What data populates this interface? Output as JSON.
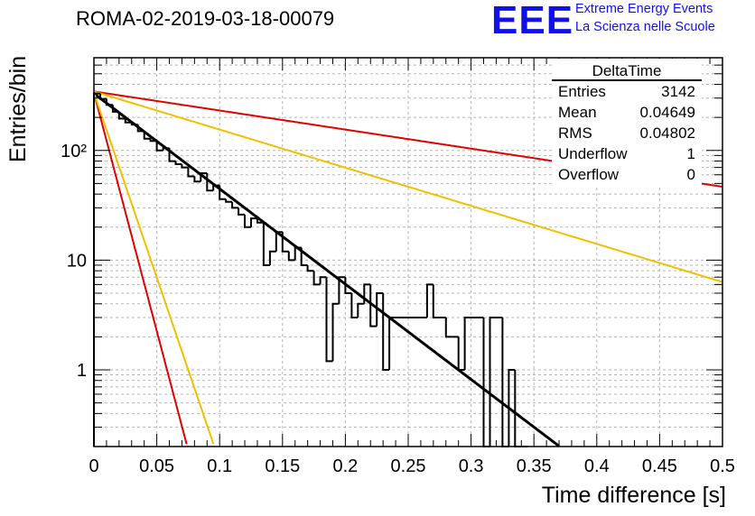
{
  "header": {
    "run_title": "ROMA-02-2019-03-18-00079",
    "logo_text": "EEE",
    "logo_line1": "Extreme Energy Events",
    "logo_line2": "La Scienza nelle Scuole",
    "logo_color": "#1010e8"
  },
  "stats_box": {
    "title": "DeltaTime",
    "rows": [
      {
        "key": "Entries",
        "value": "3142"
      },
      {
        "key": "Mean",
        "value": "0.04649"
      },
      {
        "key": "RMS",
        "value": "0.04802"
      },
      {
        "key": "Underflow",
        "value": "1"
      },
      {
        "key": "Overflow",
        "value": "0"
      }
    ]
  },
  "chart_data": {
    "type": "histogram",
    "title": "ROMA-02-2019-03-18-00079",
    "xlabel": "Time difference [s]",
    "ylabel": "Entries/bin",
    "xlim": [
      0,
      0.5
    ],
    "ylim": [
      0.2,
      700
    ],
    "yscale": "log",
    "grid": true,
    "x_ticks": [
      "0",
      "0.05",
      "0.1",
      "0.15",
      "0.2",
      "0.25",
      "0.3",
      "0.35",
      "0.4",
      "0.45",
      "0.5"
    ],
    "y_ticks": [
      "1",
      "10",
      "10²"
    ],
    "bin_width": 0.005,
    "counts": [
      330,
      295,
      260,
      225,
      195,
      180,
      172,
      150,
      128,
      122,
      100,
      105,
      80,
      75,
      70,
      58,
      52,
      62,
      43,
      48,
      36,
      34,
      30,
      26,
      20,
      24,
      22,
      9,
      12,
      18,
      12,
      10,
      13,
      9,
      8,
      6,
      7,
      1.2,
      4,
      7,
      5,
      3,
      4,
      6,
      2.5,
      5,
      1,
      3,
      3,
      3,
      3,
      3,
      3,
      6,
      3,
      3,
      2,
      2,
      1,
      3,
      3,
      3,
      0,
      3,
      3,
      0,
      1,
      0,
      0
    ],
    "fits": [
      {
        "name": "fit",
        "color": "#000000",
        "A": 330,
        "tau": 0.05
      },
      {
        "name": "red-steep",
        "color": "#e00000",
        "A": 335,
        "tau": 0.01
      },
      {
        "name": "yellow-steep",
        "color": "#f0c000",
        "A": 335,
        "tau": 0.0129
      },
      {
        "name": "red-shallow",
        "color": "#e00000",
        "A": 345,
        "tau": 0.25
      },
      {
        "name": "yellow-shallow",
        "color": "#f0c000",
        "A": 345,
        "tau": 0.125
      }
    ]
  }
}
